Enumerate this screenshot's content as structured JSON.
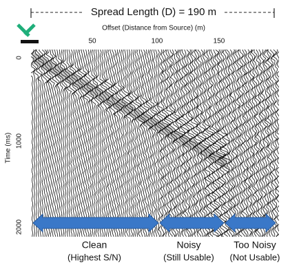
{
  "header": {
    "spread_label": "Spread Length (D) = 190 m"
  },
  "axes": {
    "x_title": "Offset (Distance from Source) (m)",
    "x_ticks": [
      "50",
      "100",
      "150"
    ],
    "y_title": "Time (ms)",
    "y_ticks": [
      "0",
      "1000",
      "2000"
    ]
  },
  "zones": [
    {
      "label": "Clean",
      "sublabel": "(Highest S/N)"
    },
    {
      "label": "Noisy",
      "sublabel": "(Still Usable)"
    },
    {
      "label": "Too Noisy",
      "sublabel": "(Not Usable)"
    }
  ]
}
